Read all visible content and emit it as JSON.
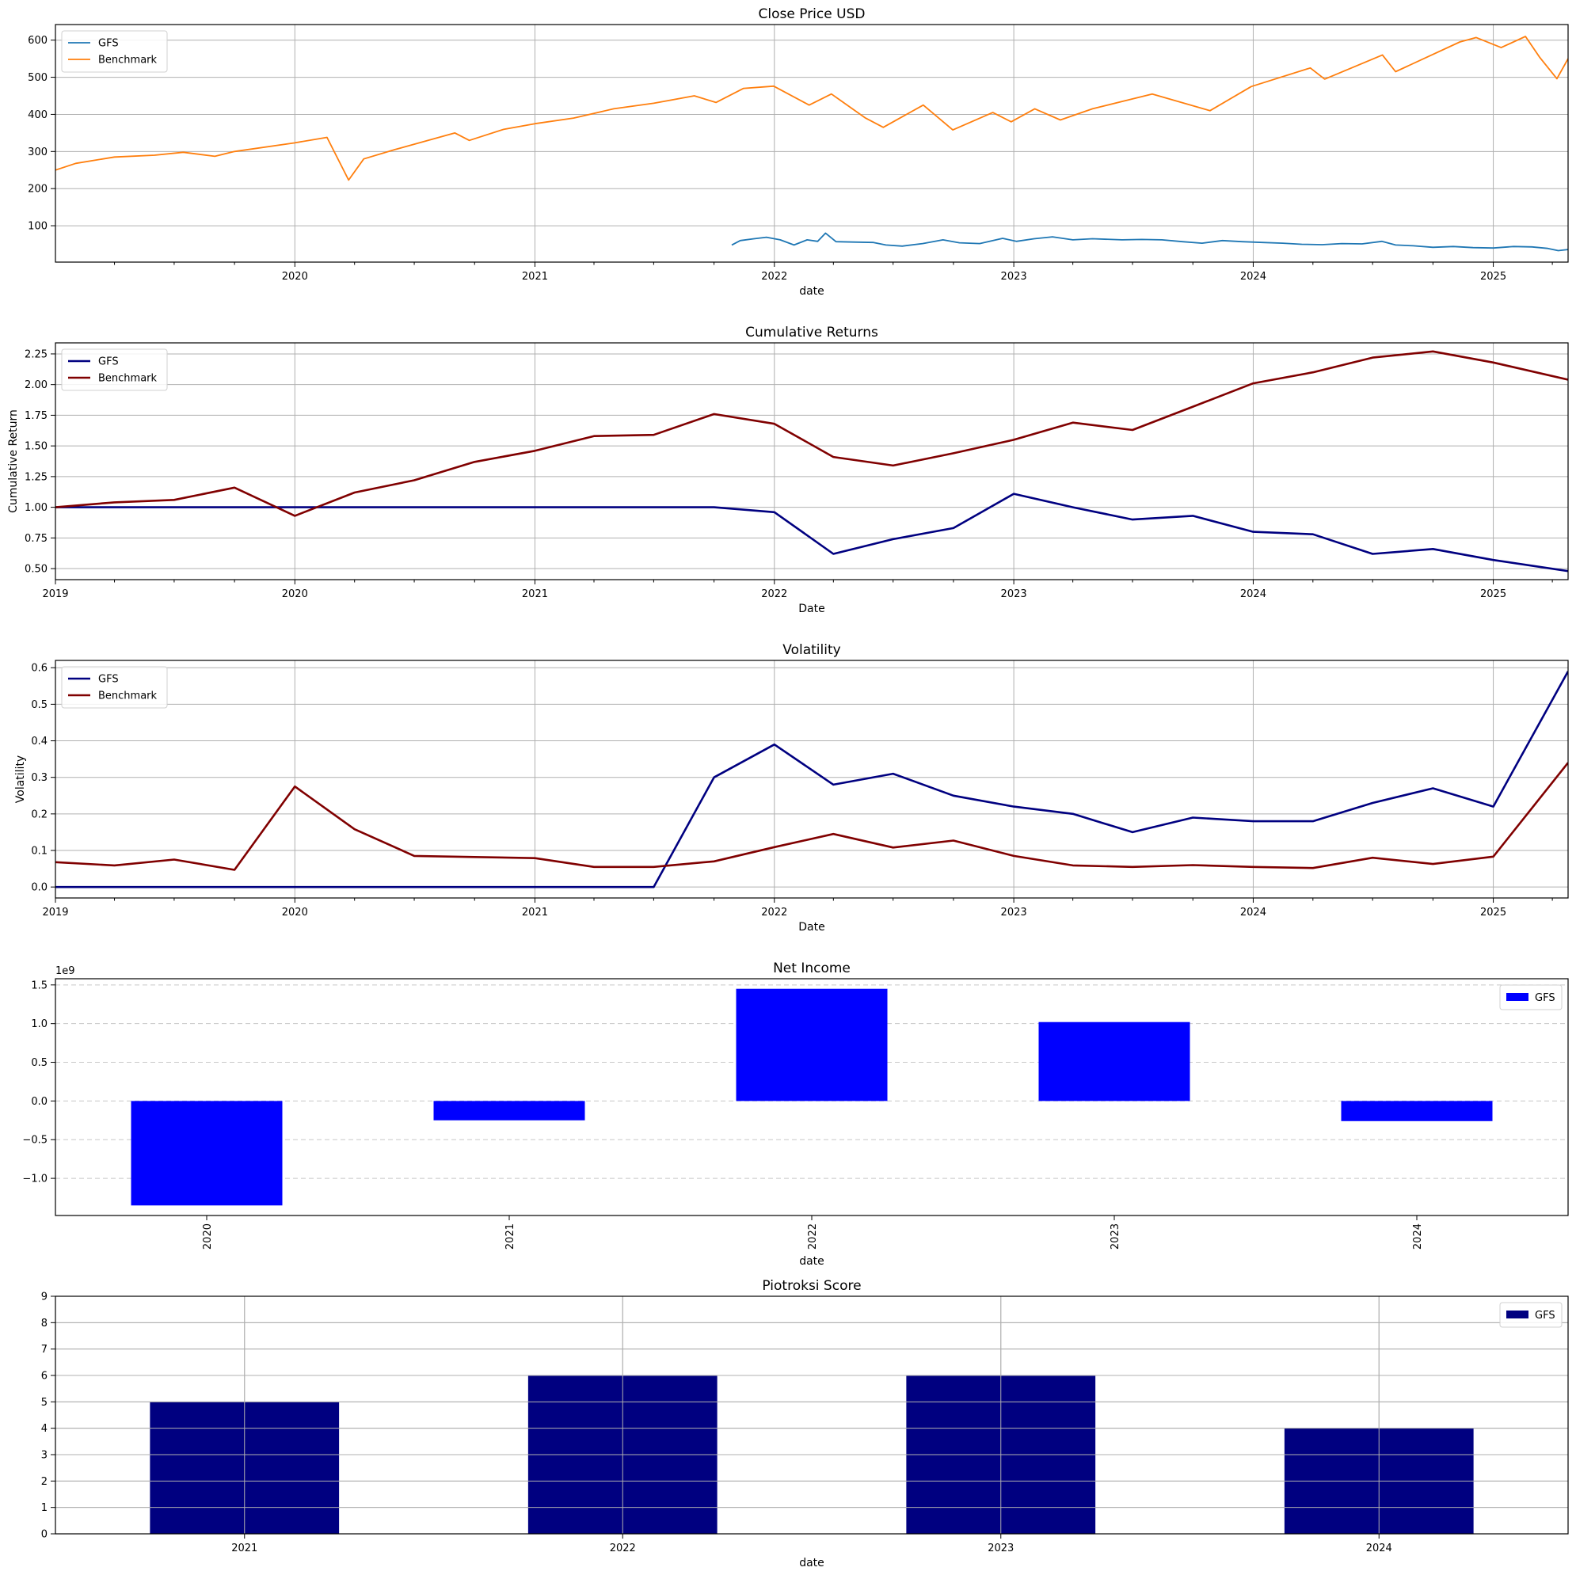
{
  "colors": {
    "gfs_price": "#1f77b4",
    "benchmark_price": "#ff7f0e",
    "gfs_line": "#000080",
    "benchmark_line": "#800000",
    "net_income_bar": "#0000ff",
    "piotroski_bar": "#000080"
  },
  "chart_data": [
    {
      "id": "close",
      "type": "line",
      "title": "Close Price USD",
      "xlabel": "date",
      "ylabel": "",
      "x_type": "date",
      "xlim": [
        "2019-01-01",
        "2025-04-25"
      ],
      "ylim": [
        2,
        642
      ],
      "yticks": [
        100,
        200,
        300,
        400,
        500,
        600
      ],
      "xticks": [
        "2020",
        "2021",
        "2022",
        "2023",
        "2024",
        "2025"
      ],
      "grid": true,
      "legend": "top-left",
      "series": [
        {
          "name": "GFS",
          "color_key": "gfs_price",
          "x": [
            "2021-10-28",
            "2021-11-10",
            "2021-12-01",
            "2021-12-20",
            "2022-01-10",
            "2022-01-31",
            "2022-02-20",
            "2022-03-08",
            "2022-03-20",
            "2022-04-05",
            "2022-05-01",
            "2022-06-01",
            "2022-06-20",
            "2022-07-15",
            "2022-08-15",
            "2022-09-15",
            "2022-10-10",
            "2022-11-10",
            "2022-12-15",
            "2023-01-05",
            "2023-02-01",
            "2023-03-01",
            "2023-04-01",
            "2023-05-01",
            "2023-06-15",
            "2023-07-15",
            "2023-08-15",
            "2023-09-15",
            "2023-10-15",
            "2023-11-15",
            "2023-12-15",
            "2024-01-15",
            "2024-02-15",
            "2024-03-15",
            "2024-04-15",
            "2024-05-15",
            "2024-06-15",
            "2024-07-15",
            "2024-08-05",
            "2024-09-01",
            "2024-10-01",
            "2024-11-01",
            "2024-12-01",
            "2025-01-01",
            "2025-02-01",
            "2025-03-01",
            "2025-03-25",
            "2025-04-10",
            "2025-04-25"
          ],
          "y": [
            48,
            60,
            65,
            69,
            62,
            48,
            62,
            58,
            80,
            57,
            56,
            55,
            48,
            45,
            52,
            62,
            54,
            52,
            66,
            58,
            65,
            70,
            62,
            65,
            62,
            63,
            62,
            57,
            53,
            60,
            57,
            55,
            53,
            50,
            49,
            52,
            51,
            58,
            48,
            46,
            42,
            44,
            41,
            40,
            44,
            43,
            39,
            33,
            36
          ]
        },
        {
          "name": "Benchmark",
          "color_key": "benchmark_price",
          "x": [
            "2019-01-01",
            "2019-02-01",
            "2019-04-01",
            "2019-06-01",
            "2019-07-15",
            "2019-09-01",
            "2019-10-01",
            "2019-12-31",
            "2020-02-19",
            "2020-03-23",
            "2020-04-15",
            "2020-06-01",
            "2020-09-01",
            "2020-09-23",
            "2020-11-15",
            "2021-01-01",
            "2021-03-01",
            "2021-05-01",
            "2021-07-01",
            "2021-09-01",
            "2021-10-04",
            "2021-11-15",
            "2021-12-31",
            "2022-02-23",
            "2022-03-29",
            "2022-05-20",
            "2022-06-16",
            "2022-08-16",
            "2022-09-30",
            "2022-11-30",
            "2022-12-28",
            "2023-02-02",
            "2023-03-13",
            "2023-05-01",
            "2023-07-31",
            "2023-10-27",
            "2023-12-29",
            "2024-03-28",
            "2024-04-19",
            "2024-07-16",
            "2024-08-05",
            "2024-11-11",
            "2024-12-06",
            "2025-01-13",
            "2025-02-19",
            "2025-03-13",
            "2025-04-08",
            "2025-04-25"
          ],
          "y": [
            250,
            268,
            285,
            290,
            298,
            287,
            300,
            323,
            338,
            223,
            280,
            305,
            350,
            330,
            360,
            375,
            390,
            415,
            430,
            450,
            432,
            470,
            476,
            425,
            455,
            390,
            365,
            425,
            358,
            405,
            380,
            415,
            385,
            415,
            455,
            410,
            475,
            525,
            495,
            560,
            515,
            595,
            607,
            580,
            610,
            553,
            496,
            550
          ]
        }
      ]
    },
    {
      "id": "cumret",
      "type": "line",
      "title": "Cumulative Returns",
      "xlabel": "Date",
      "ylabel": "Cumulative Return",
      "x_type": "date",
      "xlim": [
        "2019-01-01",
        "2025-04-25"
      ],
      "ylim": [
        0.41,
        2.34
      ],
      "yticks": [
        0.5,
        0.75,
        1.0,
        1.25,
        1.5,
        1.75,
        2.0,
        2.25
      ],
      "ytick_labels": [
        "0.50",
        "0.75",
        "1.00",
        "1.25",
        "1.50",
        "1.75",
        "2.00",
        "2.25"
      ],
      "xticks": [
        "2019",
        "2020",
        "2021",
        "2022",
        "2023",
        "2024",
        "2025"
      ],
      "grid": true,
      "legend": "top-left",
      "series": [
        {
          "name": "GFS",
          "color_key": "gfs_line",
          "x": [
            "2019-01-01",
            "2019-04-01",
            "2019-07-01",
            "2019-10-01",
            "2020-01-01",
            "2020-04-01",
            "2020-07-01",
            "2020-10-01",
            "2021-01-01",
            "2021-04-01",
            "2021-07-01",
            "2021-10-01",
            "2022-01-01",
            "2022-04-01",
            "2022-07-01",
            "2022-10-01",
            "2023-01-01",
            "2023-04-01",
            "2023-07-01",
            "2023-10-01",
            "2024-01-01",
            "2024-04-01",
            "2024-07-01",
            "2024-10-01",
            "2025-01-01",
            "2025-04-25"
          ],
          "y": [
            1.0,
            1.0,
            1.0,
            1.0,
            1.0,
            1.0,
            1.0,
            1.0,
            1.0,
            1.0,
            1.0,
            1.0,
            0.96,
            0.62,
            0.74,
            0.83,
            1.11,
            1.0,
            0.9,
            0.93,
            0.8,
            0.78,
            0.62,
            0.66,
            0.57,
            0.48
          ]
        },
        {
          "name": "Benchmark",
          "color_key": "benchmark_line",
          "x": [
            "2019-01-01",
            "2019-04-01",
            "2019-07-01",
            "2019-10-01",
            "2020-01-01",
            "2020-04-01",
            "2020-07-01",
            "2020-10-01",
            "2021-01-01",
            "2021-04-01",
            "2021-07-01",
            "2021-10-01",
            "2022-01-01",
            "2022-04-01",
            "2022-07-01",
            "2022-10-01",
            "2023-01-01",
            "2023-04-01",
            "2023-07-01",
            "2023-10-01",
            "2024-01-01",
            "2024-04-01",
            "2024-07-01",
            "2024-10-01",
            "2025-01-01",
            "2025-04-25"
          ],
          "y": [
            1.0,
            1.04,
            1.06,
            1.16,
            0.93,
            1.12,
            1.22,
            1.37,
            1.46,
            1.58,
            1.59,
            1.76,
            1.68,
            1.41,
            1.34,
            1.44,
            1.55,
            1.69,
            1.63,
            1.82,
            2.01,
            2.1,
            2.22,
            2.27,
            2.18,
            2.04
          ]
        }
      ]
    },
    {
      "id": "vol",
      "type": "line",
      "title": "Volatility",
      "xlabel": "Date",
      "ylabel": "Volatility",
      "x_type": "date",
      "xlim": [
        "2019-01-01",
        "2025-04-25"
      ],
      "ylim": [
        -0.03,
        0.62
      ],
      "yticks": [
        0.0,
        0.1,
        0.2,
        0.3,
        0.4,
        0.5,
        0.6
      ],
      "ytick_labels": [
        "0.0",
        "0.1",
        "0.2",
        "0.3",
        "0.4",
        "0.5",
        "0.6"
      ],
      "xticks": [
        "2019",
        "2020",
        "2021",
        "2022",
        "2023",
        "2024",
        "2025"
      ],
      "grid": true,
      "legend": "top-left",
      "series": [
        {
          "name": "GFS",
          "color_key": "gfs_line",
          "x": [
            "2019-01-01",
            "2019-04-01",
            "2019-07-01",
            "2019-10-01",
            "2020-01-01",
            "2020-04-01",
            "2020-07-01",
            "2020-10-01",
            "2021-01-01",
            "2021-04-01",
            "2021-07-01",
            "2021-10-01",
            "2022-01-01",
            "2022-04-01",
            "2022-07-01",
            "2022-10-01",
            "2023-01-01",
            "2023-04-01",
            "2023-07-01",
            "2023-10-01",
            "2024-01-01",
            "2024-04-01",
            "2024-07-01",
            "2024-10-01",
            "2025-01-01",
            "2025-04-25"
          ],
          "y": [
            0,
            0,
            0,
            0,
            0,
            0,
            0,
            0,
            0,
            0,
            0,
            0.3,
            0.39,
            0.28,
            0.31,
            0.25,
            0.22,
            0.2,
            0.15,
            0.19,
            0.18,
            0.18,
            0.23,
            0.27,
            0.22,
            0.59
          ]
        },
        {
          "name": "Benchmark",
          "color_key": "benchmark_line",
          "x": [
            "2019-01-01",
            "2019-04-01",
            "2019-07-01",
            "2019-10-01",
            "2020-01-01",
            "2020-04-01",
            "2020-07-01",
            "2020-10-01",
            "2021-01-01",
            "2021-04-01",
            "2021-07-01",
            "2021-10-01",
            "2022-01-01",
            "2022-04-01",
            "2022-07-01",
            "2022-10-01",
            "2023-01-01",
            "2023-04-01",
            "2023-07-01",
            "2023-10-01",
            "2024-01-01",
            "2024-04-01",
            "2024-07-01",
            "2024-10-01",
            "2025-01-01",
            "2025-04-25"
          ],
          "y": [
            0.068,
            0.059,
            0.075,
            0.047,
            0.275,
            0.158,
            0.085,
            0.082,
            0.079,
            0.055,
            0.055,
            0.07,
            0.109,
            0.145,
            0.108,
            0.127,
            0.085,
            0.059,
            0.055,
            0.06,
            0.055,
            0.052,
            0.08,
            0.063,
            0.083,
            0.34
          ]
        }
      ]
    },
    {
      "id": "netincome",
      "type": "bar",
      "title": "Net Income",
      "xlabel": "date",
      "ylabel": "",
      "offset_label": "1e9",
      "categories": [
        "2020",
        "2021",
        "2022",
        "2023",
        "2024"
      ],
      "tick_rotation": -90,
      "ylim": [
        -1.48,
        1.58
      ],
      "yticks": [
        -1.0,
        -0.5,
        0.0,
        0.5,
        1.0,
        1.5
      ],
      "ytick_labels": [
        "−1.0",
        "−0.5",
        "0.0",
        "0.5",
        "1.0",
        "1.5"
      ],
      "grid": "y-dashed",
      "legend": "top-right",
      "series": [
        {
          "name": "GFS",
          "color_key": "net_income_bar",
          "values": [
            -1.35,
            -0.25,
            1.45,
            1.02,
            -0.26
          ]
        }
      ]
    },
    {
      "id": "piotroski",
      "type": "bar",
      "title": "Piotroksi Score",
      "xlabel": "date",
      "ylabel": "",
      "categories": [
        "2021",
        "2022",
        "2023",
        "2024"
      ],
      "ylim": [
        0,
        9
      ],
      "yticks": [
        0,
        1,
        2,
        3,
        4,
        5,
        6,
        7,
        8,
        9
      ],
      "ytick_labels": [
        "0",
        "1",
        "2",
        "3",
        "4",
        "5",
        "6",
        "7",
        "8",
        "9"
      ],
      "grid": true,
      "legend": "top-right",
      "series": [
        {
          "name": "GFS",
          "color_key": "piotroski_bar",
          "values": [
            5,
            6,
            6,
            4
          ]
        }
      ]
    }
  ]
}
